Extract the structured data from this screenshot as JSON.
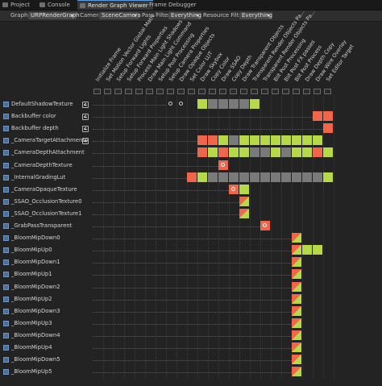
{
  "tabs": [
    {
      "label": "Project",
      "icon": "folder-icon"
    },
    {
      "label": "Console",
      "icon": "console-icon"
    },
    {
      "label": "Render Graph Viewer",
      "icon": "graph-icon",
      "active": true
    },
    {
      "label": "Frame Debugger",
      "icon": "debug-icon"
    }
  ],
  "toolbar": {
    "graph_label": "Graph",
    "graph_value": "URPRenderGraph",
    "camera_label": "Camera",
    "camera_value": "SceneCamera",
    "pass_filter_label": "Pass Filter",
    "pass_filter_value": "Everything",
    "resource_filter_label": "Resource Filter",
    "resource_filter_value": "Everything"
  },
  "passes": [
    "Initialize Frame",
    "Set Motion Vector Global Matri...",
    "Setup Forward Lights",
    "Setup Forward Properties",
    "Process Main Light Shadows",
    "Draw Main Light Command",
    "Setup Post Processing",
    "Setup Camera Properties",
    "Draw Opaque Objects",
    "Set Color LUT",
    "Draw Skybox",
    "Copy Color",
    "Draw SSAO",
    "Copy Depth",
    "Draw Transparent Objects",
    "Transparent Render Objects Pa...",
    "Transparent Render Objects Pa...",
    "Blit Post Processing",
    "Blit Post FX passes",
    "Blit Post Process",
    "Draw Depth Copy",
    "Draw Wire Overlay",
    "Set Editor Target"
  ],
  "colors": {
    "write": "#f0664a",
    "read": "#b7d948",
    "used": "#7a7a7a",
    "accent": "#4d6f95"
  },
  "resources": [
    {
      "name": "DefaultShadowTexture",
      "imported": true,
      "cells": [
        "C@7",
        "C@8",
        "G@10",
        "Y@11",
        "Y@12",
        "Y@13",
        "Y@14",
        "G@15"
      ]
    },
    {
      "name": "Backbuffer color",
      "imported": true,
      "cells": [
        "R@21",
        "R@22"
      ]
    },
    {
      "name": "Backbuffer depth",
      "imported": true,
      "cells": [
        "R@22"
      ]
    },
    {
      "name": "_CameraTargetAttachmentA",
      "imported": true,
      "cells": [
        "R@10",
        "R@11",
        "G@12",
        "Y@13",
        "G@14",
        "G@15",
        "G@16",
        "G@17",
        "G@18",
        "G@19",
        "G@20",
        "G@21"
      ]
    },
    {
      "name": "_CameraDepthAttachment",
      "imported": false,
      "cells": [
        "R@10",
        "G@11",
        "R@12",
        "G@13",
        "G@14",
        "Y@15",
        "Y@16",
        "G@17",
        "Y@18",
        "G@19",
        "G@20",
        "R@21",
        "G@22"
      ]
    },
    {
      "name": "_CameraDepthTexture",
      "imported": false,
      "cells": [
        "O@12"
      ]
    },
    {
      "name": "_InternalGradingLut",
      "imported": false,
      "cells": [
        "R@9",
        "G@10",
        "Y@11",
        "Y@12",
        "Y@13",
        "Y@14",
        "Y@15",
        "Y@16",
        "Y@17",
        "Y@18",
        "Y@19",
        "Y@20",
        "Y@21",
        "G@22"
      ]
    },
    {
      "name": "_CameraOpaqueTexture",
      "imported": false,
      "cells": [
        "O@13",
        "G@14"
      ]
    },
    {
      "name": "_SSAO_OcclusionTexture0",
      "imported": false,
      "cells": [
        "T@14"
      ]
    },
    {
      "name": "_SSAO_OcclusionTexture1",
      "imported": false,
      "cells": [
        "T@14"
      ]
    },
    {
      "name": "_GrabPassTransparent",
      "imported": false,
      "cells": [
        "O@16"
      ]
    },
    {
      "name": "_BloomMipDown0",
      "imported": false,
      "cells": [
        "T@19"
      ]
    },
    {
      "name": "_BloomMipUp0",
      "imported": false,
      "cells": [
        "T@19",
        "G@20",
        "G@21"
      ]
    },
    {
      "name": "_BloomMipDown1",
      "imported": false,
      "cells": [
        "T@19"
      ]
    },
    {
      "name": "_BloomMipUp1",
      "imported": false,
      "cells": [
        "T@19"
      ]
    },
    {
      "name": "_BloomMipDown2",
      "imported": false,
      "cells": [
        "T@19"
      ]
    },
    {
      "name": "_BloomMipUp2",
      "imported": false,
      "cells": [
        "T@19"
      ]
    },
    {
      "name": "_BloomMipDown3",
      "imported": false,
      "cells": [
        "T@19"
      ]
    },
    {
      "name": "_BloomMipUp3",
      "imported": false,
      "cells": [
        "T@19"
      ]
    },
    {
      "name": "_BloomMipDown4",
      "imported": false,
      "cells": [
        "T@19"
      ]
    },
    {
      "name": "_BloomMipUp4",
      "imported": false,
      "cells": [
        "T@19"
      ]
    },
    {
      "name": "_BloomMipDown5",
      "imported": false,
      "cells": [
        "T@19"
      ]
    },
    {
      "name": "_BloomMipUp5",
      "imported": false,
      "cells": [
        "T@19"
      ]
    }
  ]
}
